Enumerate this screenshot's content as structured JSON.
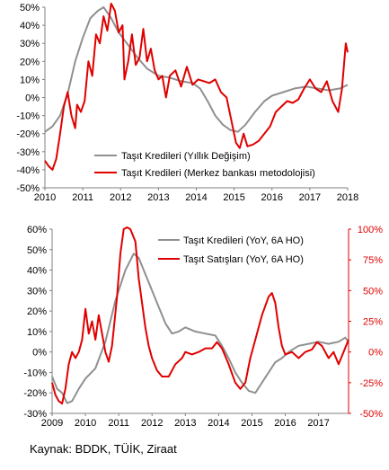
{
  "chart_data": [
    {
      "type": "line",
      "x_ticks": [
        "2010",
        "2011",
        "2012",
        "2013",
        "2014",
        "2015",
        "2016",
        "2017",
        "2018"
      ],
      "y_ticks": [
        "-50%",
        "-40%",
        "-30%",
        "-20%",
        "-10%",
        "0%",
        "10%",
        "20%",
        "30%",
        "40%",
        "50%"
      ],
      "xlim": [
        2010,
        2018
      ],
      "ylim": [
        -50,
        50
      ],
      "grid": false,
      "legend_position": "bottom-left (inside plot)",
      "series": [
        {
          "name": "Taşıt  Kredileri (Yıllık Değişim)",
          "color": "#909090",
          "points": [
            [
              2010.0,
              -19
            ],
            [
              2010.2,
              -16
            ],
            [
              2010.4,
              -10
            ],
            [
              2010.6,
              2
            ],
            [
              2010.8,
              20
            ],
            [
              2011.0,
              33
            ],
            [
              2011.2,
              44
            ],
            [
              2011.4,
              48
            ],
            [
              2011.55,
              50
            ],
            [
              2011.75,
              44
            ],
            [
              2011.95,
              36
            ],
            [
              2012.2,
              29
            ],
            [
              2012.45,
              22
            ],
            [
              2012.7,
              16
            ],
            [
              2013.0,
              12
            ],
            [
              2013.3,
              11
            ],
            [
              2013.6,
              9
            ],
            [
              2013.9,
              8
            ],
            [
              2014.1,
              5
            ],
            [
              2014.3,
              -2
            ],
            [
              2014.5,
              -10
            ],
            [
              2014.7,
              -15
            ],
            [
              2014.9,
              -18
            ],
            [
              2015.1,
              -19
            ],
            [
              2015.3,
              -15
            ],
            [
              2015.55,
              -8
            ],
            [
              2015.8,
              -2
            ],
            [
              2016.0,
              1
            ],
            [
              2016.3,
              3
            ],
            [
              2016.6,
              5
            ],
            [
              2016.9,
              6
            ],
            [
              2017.2,
              5
            ],
            [
              2017.5,
              4
            ],
            [
              2017.8,
              5
            ],
            [
              2018.0,
              7
            ]
          ]
        },
        {
          "name": "Taşıt  Kredileri (Merkez bankası metodolojisi)",
          "color": "#e00000",
          "points": [
            [
              2010.0,
              -35
            ],
            [
              2010.1,
              -38
            ],
            [
              2010.2,
              -40
            ],
            [
              2010.3,
              -34
            ],
            [
              2010.4,
              -20
            ],
            [
              2010.5,
              -5
            ],
            [
              2010.6,
              3
            ],
            [
              2010.7,
              -10
            ],
            [
              2010.8,
              -17
            ],
            [
              2010.85,
              -4
            ],
            [
              2010.95,
              -8
            ],
            [
              2011.05,
              -2
            ],
            [
              2011.15,
              20
            ],
            [
              2011.25,
              12
            ],
            [
              2011.35,
              35
            ],
            [
              2011.45,
              30
            ],
            [
              2011.55,
              45
            ],
            [
              2011.65,
              37
            ],
            [
              2011.75,
              62
            ],
            [
              2011.85,
              48
            ],
            [
              2011.95,
              36
            ],
            [
              2012.05,
              40
            ],
            [
              2012.1,
              10
            ],
            [
              2012.2,
              20
            ],
            [
              2012.3,
              35
            ],
            [
              2012.4,
              18
            ],
            [
              2012.5,
              22
            ],
            [
              2012.6,
              38
            ],
            [
              2012.7,
              20
            ],
            [
              2012.8,
              27
            ],
            [
              2012.9,
              15
            ],
            [
              2013.0,
              10
            ],
            [
              2013.1,
              12
            ],
            [
              2013.2,
              0
            ],
            [
              2013.3,
              12
            ],
            [
              2013.45,
              15
            ],
            [
              2013.6,
              6
            ],
            [
              2013.75,
              17
            ],
            [
              2013.9,
              7
            ],
            [
              2014.05,
              10
            ],
            [
              2014.2,
              9
            ],
            [
              2014.35,
              8
            ],
            [
              2014.5,
              10
            ],
            [
              2014.65,
              3
            ],
            [
              2014.8,
              0
            ],
            [
              2014.95,
              -15
            ],
            [
              2015.05,
              -25
            ],
            [
              2015.15,
              -28
            ],
            [
              2015.25,
              -20
            ],
            [
              2015.35,
              -27
            ],
            [
              2015.5,
              -26
            ],
            [
              2015.65,
              -24
            ],
            [
              2015.8,
              -20
            ],
            [
              2015.95,
              -16
            ],
            [
              2016.1,
              -8
            ],
            [
              2016.25,
              -5
            ],
            [
              2016.4,
              -2
            ],
            [
              2016.55,
              -3
            ],
            [
              2016.7,
              -1
            ],
            [
              2016.85,
              5
            ],
            [
              2017.0,
              10
            ],
            [
              2017.15,
              5
            ],
            [
              2017.3,
              3
            ],
            [
              2017.45,
              9
            ],
            [
              2017.6,
              -2
            ],
            [
              2017.75,
              -8
            ],
            [
              2017.85,
              5
            ],
            [
              2017.95,
              30
            ],
            [
              2018.0,
              25
            ]
          ]
        }
      ]
    },
    {
      "type": "line",
      "x_ticks": [
        "2009",
        "2010",
        "2011",
        "2012",
        "2013",
        "2014",
        "2015",
        "2016",
        "2017"
      ],
      "y_ticks_left": [
        "-30%",
        "-20%",
        "-10%",
        "0%",
        "10%",
        "20%",
        "30%",
        "40%",
        "50%",
        "60%"
      ],
      "y_ticks_right": [
        "-50%",
        "-25%",
        "0%",
        "25%",
        "50%",
        "75%",
        "100%"
      ],
      "xlim": [
        2009,
        2017.9
      ],
      "ylim_left": [
        -30,
        60
      ],
      "ylim_right": [
        -50,
        100
      ],
      "grid": false,
      "legend_position": "top-right (inside plot)",
      "series": [
        {
          "name": "Taşıt Kredileri (YoY, 6A HO)",
          "color": "#909090",
          "axis": "left",
          "points": [
            [
              2009.0,
              -12
            ],
            [
              2009.15,
              -18
            ],
            [
              2009.3,
              -20
            ],
            [
              2009.45,
              -25
            ],
            [
              2009.6,
              -24
            ],
            [
              2009.8,
              -18
            ],
            [
              2010.0,
              -13
            ],
            [
              2010.3,
              -8
            ],
            [
              2010.6,
              5
            ],
            [
              2010.9,
              25
            ],
            [
              2011.2,
              40
            ],
            [
              2011.45,
              48
            ],
            [
              2011.6,
              46
            ],
            [
              2011.8,
              38
            ],
            [
              2012.0,
              30
            ],
            [
              2012.2,
              22
            ],
            [
              2012.4,
              14
            ],
            [
              2012.6,
              9
            ],
            [
              2012.8,
              10
            ],
            [
              2013.0,
              12
            ],
            [
              2013.3,
              10
            ],
            [
              2013.6,
              9
            ],
            [
              2013.9,
              8
            ],
            [
              2014.1,
              3
            ],
            [
              2014.3,
              -3
            ],
            [
              2014.5,
              -10
            ],
            [
              2014.7,
              -15
            ],
            [
              2014.9,
              -19
            ],
            [
              2015.1,
              -20
            ],
            [
              2015.3,
              -15
            ],
            [
              2015.5,
              -10
            ],
            [
              2015.7,
              -5
            ],
            [
              2015.9,
              -3
            ],
            [
              2016.1,
              0
            ],
            [
              2016.4,
              3
            ],
            [
              2016.7,
              4
            ],
            [
              2017.0,
              5
            ],
            [
              2017.3,
              4
            ],
            [
              2017.6,
              5
            ],
            [
              2017.8,
              7
            ],
            [
              2017.9,
              5
            ]
          ]
        },
        {
          "name": "Taşıt Satışları (YoY, 6A HO)",
          "color": "#e00000",
          "axis": "right",
          "points": [
            [
              2009.0,
              -25
            ],
            [
              2009.1,
              -35
            ],
            [
              2009.2,
              -40
            ],
            [
              2009.3,
              -42
            ],
            [
              2009.4,
              -30
            ],
            [
              2009.5,
              -10
            ],
            [
              2009.6,
              0
            ],
            [
              2009.7,
              -5
            ],
            [
              2009.8,
              0
            ],
            [
              2009.9,
              10
            ],
            [
              2010.0,
              35
            ],
            [
              2010.1,
              15
            ],
            [
              2010.2,
              25
            ],
            [
              2010.3,
              10
            ],
            [
              2010.4,
              30
            ],
            [
              2010.5,
              15
            ],
            [
              2010.6,
              0
            ],
            [
              2010.7,
              -8
            ],
            [
              2010.8,
              5
            ],
            [
              2010.95,
              45
            ],
            [
              2011.05,
              80
            ],
            [
              2011.15,
              100
            ],
            [
              2011.25,
              115
            ],
            [
              2011.35,
              100
            ],
            [
              2011.5,
              90
            ],
            [
              2011.6,
              60
            ],
            [
              2011.7,
              40
            ],
            [
              2011.8,
              20
            ],
            [
              2011.9,
              5
            ],
            [
              2012.0,
              -5
            ],
            [
              2012.15,
              -15
            ],
            [
              2012.3,
              -20
            ],
            [
              2012.5,
              -20
            ],
            [
              2012.7,
              -10
            ],
            [
              2012.9,
              -5
            ],
            [
              2013.0,
              0
            ],
            [
              2013.2,
              -2
            ],
            [
              2013.4,
              0
            ],
            [
              2013.6,
              3
            ],
            [
              2013.8,
              3
            ],
            [
              2013.95,
              8
            ],
            [
              2014.1,
              3
            ],
            [
              2014.3,
              -10
            ],
            [
              2014.5,
              -25
            ],
            [
              2014.65,
              -30
            ],
            [
              2014.8,
              -25
            ],
            [
              2014.95,
              -5
            ],
            [
              2015.1,
              10
            ],
            [
              2015.3,
              30
            ],
            [
              2015.5,
              45
            ],
            [
              2015.6,
              48
            ],
            [
              2015.7,
              40
            ],
            [
              2015.8,
              20
            ],
            [
              2015.9,
              5
            ],
            [
              2016.0,
              -2
            ],
            [
              2016.2,
              0
            ],
            [
              2016.4,
              -5
            ],
            [
              2016.6,
              0
            ],
            [
              2016.8,
              2
            ],
            [
              2016.95,
              8
            ],
            [
              2017.1,
              5
            ],
            [
              2017.3,
              -5
            ],
            [
              2017.45,
              0
            ],
            [
              2017.6,
              -10
            ],
            [
              2017.75,
              0
            ],
            [
              2017.9,
              10
            ]
          ]
        }
      ]
    }
  ],
  "source": "Kaynak: BDDK, TÜİK, Ziraat"
}
